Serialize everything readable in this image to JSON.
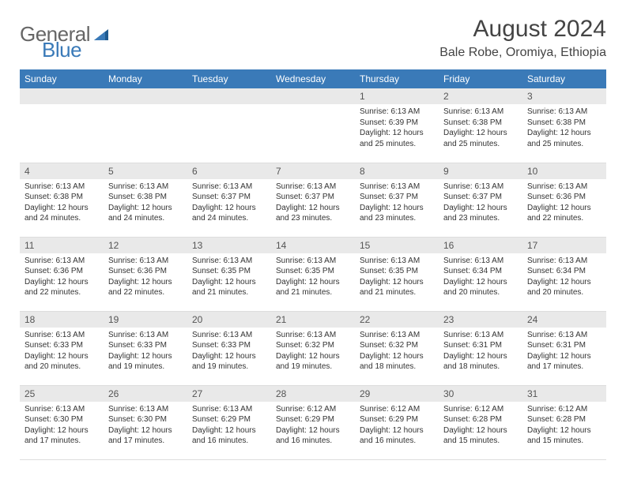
{
  "logo": {
    "word1": "General",
    "word2": "Blue"
  },
  "title": "August 2024",
  "location": "Bale Robe, Oromiya, Ethiopia",
  "colors": {
    "header_bg": "#3a7ab8",
    "header_text": "#ffffff",
    "daynum_bg": "#e9e9e9",
    "text": "#333333",
    "title": "#444444",
    "logo_gray": "#666666",
    "logo_blue": "#3a7ab8"
  },
  "day_headers": [
    "Sunday",
    "Monday",
    "Tuesday",
    "Wednesday",
    "Thursday",
    "Friday",
    "Saturday"
  ],
  "weeks": [
    [
      null,
      null,
      null,
      null,
      {
        "n": "1",
        "rise": "6:13 AM",
        "set": "6:39 PM",
        "dayl": "12 hours and 25 minutes."
      },
      {
        "n": "2",
        "rise": "6:13 AM",
        "set": "6:38 PM",
        "dayl": "12 hours and 25 minutes."
      },
      {
        "n": "3",
        "rise": "6:13 AM",
        "set": "6:38 PM",
        "dayl": "12 hours and 25 minutes."
      }
    ],
    [
      {
        "n": "4",
        "rise": "6:13 AM",
        "set": "6:38 PM",
        "dayl": "12 hours and 24 minutes."
      },
      {
        "n": "5",
        "rise": "6:13 AM",
        "set": "6:38 PM",
        "dayl": "12 hours and 24 minutes."
      },
      {
        "n": "6",
        "rise": "6:13 AM",
        "set": "6:37 PM",
        "dayl": "12 hours and 24 minutes."
      },
      {
        "n": "7",
        "rise": "6:13 AM",
        "set": "6:37 PM",
        "dayl": "12 hours and 23 minutes."
      },
      {
        "n": "8",
        "rise": "6:13 AM",
        "set": "6:37 PM",
        "dayl": "12 hours and 23 minutes."
      },
      {
        "n": "9",
        "rise": "6:13 AM",
        "set": "6:37 PM",
        "dayl": "12 hours and 23 minutes."
      },
      {
        "n": "10",
        "rise": "6:13 AM",
        "set": "6:36 PM",
        "dayl": "12 hours and 22 minutes."
      }
    ],
    [
      {
        "n": "11",
        "rise": "6:13 AM",
        "set": "6:36 PM",
        "dayl": "12 hours and 22 minutes."
      },
      {
        "n": "12",
        "rise": "6:13 AM",
        "set": "6:36 PM",
        "dayl": "12 hours and 22 minutes."
      },
      {
        "n": "13",
        "rise": "6:13 AM",
        "set": "6:35 PM",
        "dayl": "12 hours and 21 minutes."
      },
      {
        "n": "14",
        "rise": "6:13 AM",
        "set": "6:35 PM",
        "dayl": "12 hours and 21 minutes."
      },
      {
        "n": "15",
        "rise": "6:13 AM",
        "set": "6:35 PM",
        "dayl": "12 hours and 21 minutes."
      },
      {
        "n": "16",
        "rise": "6:13 AM",
        "set": "6:34 PM",
        "dayl": "12 hours and 20 minutes."
      },
      {
        "n": "17",
        "rise": "6:13 AM",
        "set": "6:34 PM",
        "dayl": "12 hours and 20 minutes."
      }
    ],
    [
      {
        "n": "18",
        "rise": "6:13 AM",
        "set": "6:33 PM",
        "dayl": "12 hours and 20 minutes."
      },
      {
        "n": "19",
        "rise": "6:13 AM",
        "set": "6:33 PM",
        "dayl": "12 hours and 19 minutes."
      },
      {
        "n": "20",
        "rise": "6:13 AM",
        "set": "6:33 PM",
        "dayl": "12 hours and 19 minutes."
      },
      {
        "n": "21",
        "rise": "6:13 AM",
        "set": "6:32 PM",
        "dayl": "12 hours and 19 minutes."
      },
      {
        "n": "22",
        "rise": "6:13 AM",
        "set": "6:32 PM",
        "dayl": "12 hours and 18 minutes."
      },
      {
        "n": "23",
        "rise": "6:13 AM",
        "set": "6:31 PM",
        "dayl": "12 hours and 18 minutes."
      },
      {
        "n": "24",
        "rise": "6:13 AM",
        "set": "6:31 PM",
        "dayl": "12 hours and 17 minutes."
      }
    ],
    [
      {
        "n": "25",
        "rise": "6:13 AM",
        "set": "6:30 PM",
        "dayl": "12 hours and 17 minutes."
      },
      {
        "n": "26",
        "rise": "6:13 AM",
        "set": "6:30 PM",
        "dayl": "12 hours and 17 minutes."
      },
      {
        "n": "27",
        "rise": "6:13 AM",
        "set": "6:29 PM",
        "dayl": "12 hours and 16 minutes."
      },
      {
        "n": "28",
        "rise": "6:12 AM",
        "set": "6:29 PM",
        "dayl": "12 hours and 16 minutes."
      },
      {
        "n": "29",
        "rise": "6:12 AM",
        "set": "6:29 PM",
        "dayl": "12 hours and 16 minutes."
      },
      {
        "n": "30",
        "rise": "6:12 AM",
        "set": "6:28 PM",
        "dayl": "12 hours and 15 minutes."
      },
      {
        "n": "31",
        "rise": "6:12 AM",
        "set": "6:28 PM",
        "dayl": "12 hours and 15 minutes."
      }
    ]
  ],
  "labels": {
    "sunrise": "Sunrise:",
    "sunset": "Sunset:",
    "daylight": "Daylight:"
  }
}
